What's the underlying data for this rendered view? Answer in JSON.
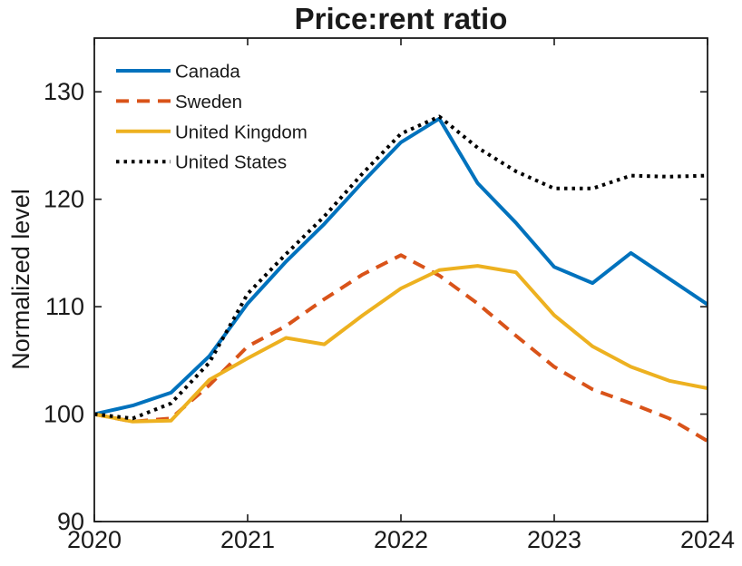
{
  "title": "Price:rent ratio",
  "chart_data": {
    "type": "line",
    "title": "Price:rent ratio",
    "xlabel": "",
    "ylabel": "Normalized level",
    "xlim": [
      2020,
      2024
    ],
    "ylim": [
      90,
      135
    ],
    "x_ticks": [
      2020,
      2021,
      2022,
      2023,
      2024
    ],
    "y_ticks": [
      90,
      100,
      110,
      120,
      130
    ],
    "grid": false,
    "box": true,
    "legend_position": "top-left-inside-no-box",
    "x": [
      2020.0,
      2020.25,
      2020.5,
      2020.75,
      2021.0,
      2021.25,
      2021.5,
      2021.75,
      2022.0,
      2022.25,
      2022.5,
      2022.75,
      2023.0,
      2023.25,
      2023.5,
      2023.75,
      2024.0
    ],
    "series": [
      {
        "name": "Canada",
        "color": "#0072BD",
        "line_style": "solid",
        "values": [
          100,
          100.8,
          102.0,
          105.4,
          110.3,
          114.2,
          117.7,
          121.6,
          125.3,
          127.5,
          121.5,
          117.8,
          113.7,
          112.2,
          115.0,
          112.6,
          110.2
        ]
      },
      {
        "name": "Sweden",
        "color": "#D95319",
        "line_style": "dashed",
        "values": [
          100,
          99.3,
          99.6,
          102.7,
          106.3,
          108.2,
          110.7,
          113.0,
          114.8,
          112.9,
          110.3,
          107.3,
          104.4,
          102.3,
          101.0,
          99.6,
          97.5
        ]
      },
      {
        "name": "United Kingdom",
        "color": "#EDB120",
        "line_style": "solid",
        "values": [
          100,
          99.3,
          99.4,
          103.2,
          105.2,
          107.1,
          106.5,
          109.2,
          111.7,
          113.4,
          113.8,
          113.2,
          109.2,
          106.3,
          104.4,
          103.1,
          102.4
        ]
      },
      {
        "name": "United States",
        "color": "#000000",
        "line_style": "dotted",
        "values": [
          100,
          99.6,
          101.0,
          104.8,
          111.2,
          114.9,
          118.4,
          122.4,
          126.1,
          127.7,
          124.8,
          122.6,
          121.0,
          121.0,
          122.2,
          122.1,
          122.2
        ]
      }
    ]
  }
}
